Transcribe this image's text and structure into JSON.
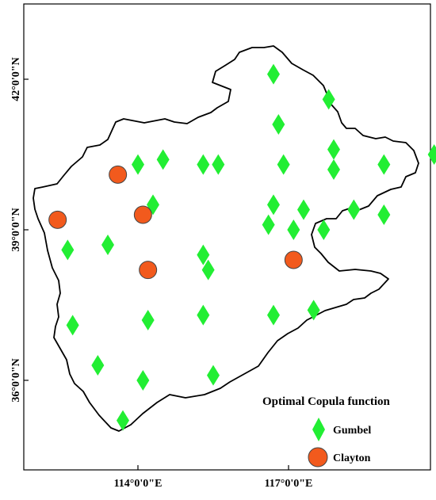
{
  "map": {
    "y_ticks": [
      {
        "value": 42,
        "label": "42°0'0\"N"
      },
      {
        "value": 39,
        "label": "39°0'0\"N"
      },
      {
        "value": 36,
        "label": "36°0'0\"N"
      }
    ],
    "x_ticks": [
      {
        "value": 114,
        "label": "114°0'0\"E"
      },
      {
        "value": 117,
        "label": "117°0'0\"E"
      }
    ]
  },
  "legend": {
    "title": "Optimal Copula function",
    "items": [
      {
        "label": "Gumbel",
        "shape": "diamond",
        "color": "#22ee33"
      },
      {
        "label": "Clayton",
        "shape": "circle",
        "color": "#f25a1d"
      }
    ]
  },
  "stations": {
    "gumbel": [
      [
        116.7,
        42.1
      ],
      [
        117.8,
        41.6
      ],
      [
        116.8,
        41.1
      ],
      [
        117.9,
        40.6
      ],
      [
        118.9,
        40.3
      ],
      [
        119.9,
        40.5
      ],
      [
        114.0,
        40.3
      ],
      [
        114.5,
        40.4
      ],
      [
        115.3,
        40.3
      ],
      [
        115.6,
        40.3
      ],
      [
        116.9,
        40.3
      ],
      [
        117.9,
        40.2
      ],
      [
        114.3,
        39.5
      ],
      [
        116.7,
        39.5
      ],
      [
        117.3,
        39.4
      ],
      [
        118.3,
        39.4
      ],
      [
        118.9,
        39.3
      ],
      [
        116.6,
        39.1
      ],
      [
        117.1,
        39.0
      ],
      [
        117.7,
        39.0
      ],
      [
        112.6,
        38.6
      ],
      [
        113.4,
        38.7
      ],
      [
        115.3,
        38.5
      ],
      [
        115.4,
        38.2
      ],
      [
        112.7,
        37.1
      ],
      [
        114.2,
        37.2
      ],
      [
        115.3,
        37.3
      ],
      [
        116.7,
        37.3
      ],
      [
        117.5,
        37.4
      ],
      [
        113.2,
        36.3
      ],
      [
        114.1,
        36.0
      ],
      [
        115.5,
        36.1
      ],
      [
        113.7,
        35.2
      ]
    ],
    "clayton": [
      [
        113.6,
        40.1
      ],
      [
        112.4,
        39.2
      ],
      [
        114.1,
        39.3
      ],
      [
        114.2,
        38.2
      ],
      [
        117.1,
        38.4
      ]
    ]
  }
}
